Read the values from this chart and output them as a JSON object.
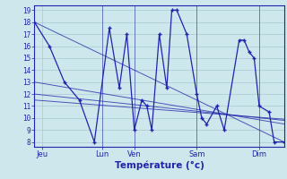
{
  "background_color": "#cce8ec",
  "grid_color": "#a8c8d0",
  "line_color": "#2222aa",
  "xlabel": "Température (°c)",
  "yticks": [
    8,
    9,
    10,
    11,
    12,
    13,
    14,
    15,
    16,
    17,
    18,
    19
  ],
  "ylim": [
    7.6,
    19.4
  ],
  "xlim": [
    0,
    100
  ],
  "xtick_positions": [
    3,
    27,
    40,
    65,
    90
  ],
  "xtick_labels": [
    "Jeu",
    "Lun",
    "Ven",
    "Sam",
    "Dim"
  ],
  "vlines": [
    27,
    40,
    65,
    90
  ],
  "series": [
    [
      0,
      18
    ],
    [
      6,
      16
    ],
    [
      12,
      13
    ],
    [
      18,
      11.5
    ],
    [
      24,
      8
    ],
    [
      30,
      17.5
    ],
    [
      34,
      12.5
    ],
    [
      37,
      17
    ],
    [
      40,
      9
    ],
    [
      43,
      11.5
    ],
    [
      45,
      11
    ],
    [
      47,
      9
    ],
    [
      50,
      17
    ],
    [
      53,
      12.5
    ],
    [
      55,
      19
    ],
    [
      57,
      19
    ],
    [
      61,
      17
    ],
    [
      65,
      12
    ],
    [
      67,
      10
    ],
    [
      69,
      9.5
    ],
    [
      73,
      11
    ],
    [
      76,
      9
    ],
    [
      82,
      16.5
    ],
    [
      84,
      16.5
    ],
    [
      86,
      15.5
    ],
    [
      88,
      15
    ],
    [
      90,
      11
    ],
    [
      94,
      10.5
    ],
    [
      96,
      8
    ],
    [
      100,
      8
    ]
  ],
  "trend_lines": [
    {
      "x": [
        0,
        100
      ],
      "y": [
        18,
        8
      ]
    },
    {
      "x": [
        0,
        100
      ],
      "y": [
        13,
        9.5
      ]
    },
    {
      "x": [
        0,
        100
      ],
      "y": [
        12,
        9.8
      ]
    },
    {
      "x": [
        0,
        100
      ],
      "y": [
        11.5,
        9.9
      ]
    }
  ]
}
